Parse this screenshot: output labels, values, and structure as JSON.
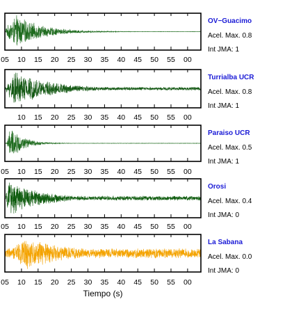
{
  "chart_data": {
    "type": "line",
    "xlabel": "Tiempo (s)",
    "x_tick_labels": [
      "05",
      "10",
      "15",
      "20",
      "25",
      "30",
      "35",
      "40",
      "45",
      "50",
      "55",
      "00"
    ],
    "amplitude_label": "Acel. Max.",
    "intensity_label": "Int JMA:",
    "series": [
      {
        "name": "OV−Guacimo",
        "pga": "0.8",
        "jma": "1",
        "color": "#1e6b1e",
        "onset_s": 5.3,
        "peak_s": 8.5,
        "decay_s": 8,
        "noise": 0.01
      },
      {
        "name": "Turrialba UCR",
        "pga": "0.8",
        "jma": "1",
        "color": "#135813",
        "onset_s": 5.4,
        "peak_s": 8.0,
        "decay_s": 12,
        "noise": 0.1
      },
      {
        "name": "Paraiso UCR",
        "pga": "0.5",
        "jma": "1",
        "color": "#1e6b1e",
        "onset_s": 5.6,
        "peak_s": 6.8,
        "decay_s": 4,
        "noise": 0.01
      },
      {
        "name": "Orosi",
        "pga": "0.4",
        "jma": "0",
        "color": "#0f5c0f",
        "onset_s": 5.3,
        "peak_s": 6.5,
        "decay_s": 10,
        "noise": 0.13
      },
      {
        "name": "La Sabana",
        "pga": "0.0",
        "jma": "0",
        "color": "#f4a300",
        "onset_s": 7.0,
        "peak_s": 11.0,
        "decay_s": 14,
        "noise": 0.3
      }
    ]
  }
}
